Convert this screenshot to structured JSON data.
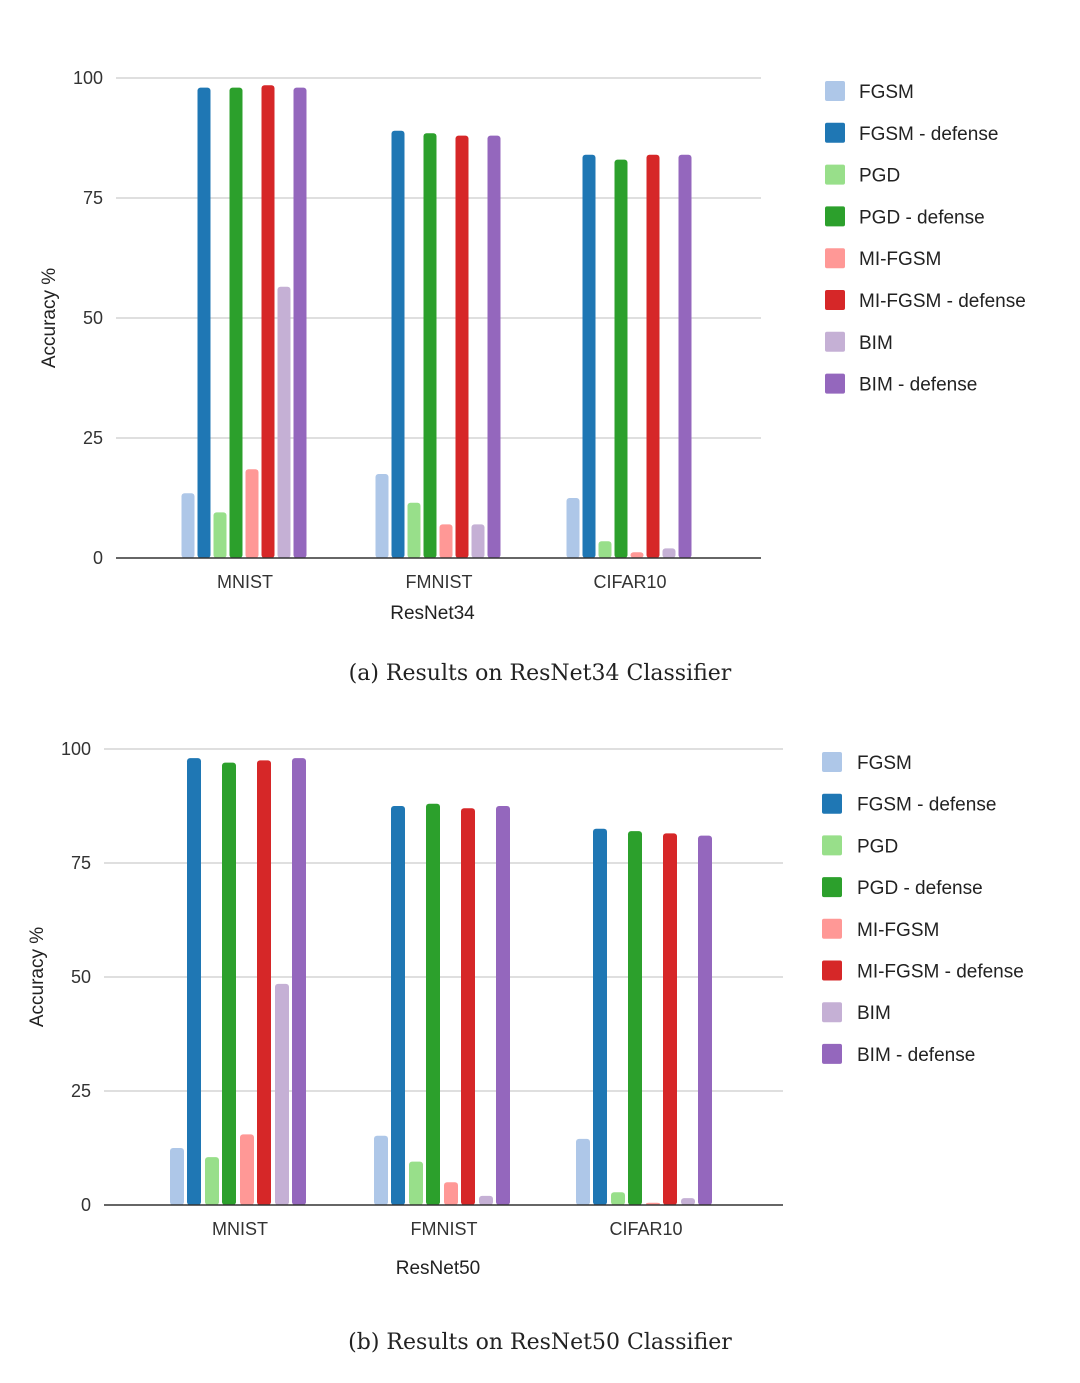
{
  "chart_data": [
    {
      "type": "bar",
      "title": "",
      "xlabel": "ResNet34",
      "ylabel": "Accuracy %",
      "ylim": [
        0,
        100
      ],
      "yticks": [
        0,
        25,
        50,
        75,
        100
      ],
      "grid": true,
      "legend_position": "right",
      "categories": [
        "MNIST",
        "FMNIST",
        "CIFAR10"
      ],
      "series": [
        {
          "name": "FGSM",
          "color": "#aec7e8",
          "values": [
            13.5,
            17.5,
            12.5
          ]
        },
        {
          "name": "FGSM - defense",
          "color": "#1f77b4",
          "values": [
            98,
            89,
            84
          ]
        },
        {
          "name": "PGD",
          "color": "#98df8a",
          "values": [
            9.5,
            11.5,
            3.5
          ]
        },
        {
          "name": "PGD - defense",
          "color": "#2ca02c",
          "values": [
            98,
            88.5,
            83
          ]
        },
        {
          "name": "MI-FGSM",
          "color": "#ff9896",
          "values": [
            18.5,
            7,
            1.2
          ]
        },
        {
          "name": "MI-FGSM - defense",
          "color": "#d62728",
          "values": [
            98.5,
            88,
            84
          ]
        },
        {
          "name": "BIM",
          "color": "#c5b0d5",
          "values": [
            56.5,
            7,
            2
          ]
        },
        {
          "name": "BIM - defense",
          "color": "#9467bd",
          "values": [
            98,
            88,
            84
          ]
        }
      ],
      "caption": "(a) Results on ResNet34 Classifier"
    },
    {
      "type": "bar",
      "title": "",
      "xlabel": "ResNet50",
      "ylabel": "Accuracy %",
      "ylim": [
        0,
        100
      ],
      "yticks": [
        0,
        25,
        50,
        75,
        100
      ],
      "grid": true,
      "legend_position": "right",
      "categories": [
        "MNIST",
        "FMNIST",
        "CIFAR10"
      ],
      "series": [
        {
          "name": "FGSM",
          "color": "#aec7e8",
          "values": [
            12.5,
            15.2,
            14.5
          ]
        },
        {
          "name": "FGSM - defense",
          "color": "#1f77b4",
          "values": [
            98,
            87.5,
            82.5
          ]
        },
        {
          "name": "PGD",
          "color": "#98df8a",
          "values": [
            10.5,
            9.5,
            2.8
          ]
        },
        {
          "name": "PGD - defense",
          "color": "#2ca02c",
          "values": [
            97,
            88,
            82
          ]
        },
        {
          "name": "MI-FGSM",
          "color": "#ff9896",
          "values": [
            15.5,
            5,
            0.5
          ]
        },
        {
          "name": "MI-FGSM - defense",
          "color": "#d62728",
          "values": [
            97.5,
            87,
            81.5
          ]
        },
        {
          "name": "BIM",
          "color": "#c5b0d5",
          "values": [
            48.5,
            2,
            1.5
          ]
        },
        {
          "name": "BIM - defense",
          "color": "#9467bd",
          "values": [
            98,
            87.5,
            81
          ]
        }
      ],
      "caption": "(b) Results on ResNet50 Classifier"
    }
  ]
}
